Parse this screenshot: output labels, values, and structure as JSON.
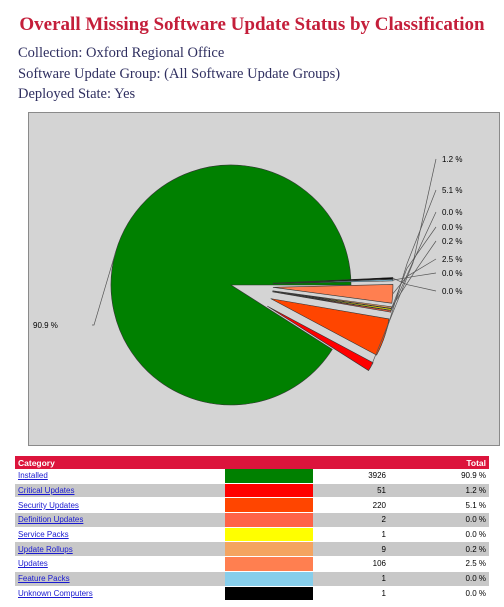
{
  "header": {
    "title": "Overall Missing Software Update Status by Classification",
    "collection": "Collection: Oxford Regional Office",
    "update_group": "Software Update Group: (All Software Update Groups)",
    "deployed_state": "Deployed State: Yes"
  },
  "table": {
    "col_category": "Category",
    "col_total": "Total"
  },
  "chart_data": {
    "type": "pie",
    "background": "#d4d4d4",
    "slices": [
      {
        "category": "Installed",
        "count": 3926,
        "pct_label": "90.9 %",
        "value": 90.9,
        "color": "#008000"
      },
      {
        "category": "Critical Updates",
        "count": 51,
        "pct_label": "1.2 %",
        "value": 1.2,
        "color": "#ff0000"
      },
      {
        "category": "Security Updates",
        "count": 220,
        "pct_label": "5.1 %",
        "value": 5.1,
        "color": "#ff4500"
      },
      {
        "category": "Definition Updates",
        "count": 2,
        "pct_label": "0.0 %",
        "value": 0.0,
        "color": "#ff6347"
      },
      {
        "category": "Service Packs",
        "count": 1,
        "pct_label": "0.0 %",
        "value": 0.0,
        "color": "#ffff00"
      },
      {
        "category": "Update Rollups",
        "count": 9,
        "pct_label": "0.2 %",
        "value": 0.2,
        "color": "#f4a460"
      },
      {
        "category": "Updates",
        "count": 106,
        "pct_label": "2.5 %",
        "value": 2.5,
        "color": "#ff7f50"
      },
      {
        "category": "Feature Packs",
        "count": 1,
        "pct_label": "0.0 %",
        "value": 0.0,
        "color": "#87ceeb"
      },
      {
        "category": "Unknown Computers",
        "count": 1,
        "pct_label": "0.0 %",
        "value": 0.0,
        "color": "#000000"
      }
    ]
  }
}
